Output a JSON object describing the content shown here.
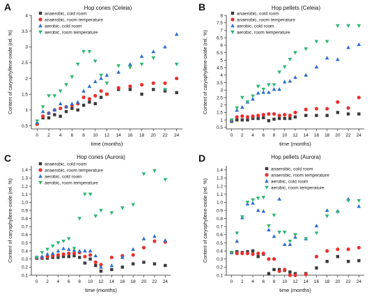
{
  "legend_labels": [
    "anaerobic, cold room",
    "anaerobic, room temperature",
    "aerobic, cold room",
    "aerobic, room temperature"
  ],
  "colors": {
    "anaerobic_cold": "#3a3a3a",
    "anaerobic_room": "#e8312f",
    "aerobic_cold": "#2f6fd1",
    "aerobic_room": "#2bb673"
  },
  "chart_data": [
    {
      "type": "scatter",
      "panel_letter": "A",
      "title": "Hop cones (Celeia)",
      "xlabel": "time (months)",
      "ylabel": "Content of caryophyllene-oxide (rel. %)",
      "xlim": [
        -1,
        25
      ],
      "ylim": [
        0.4,
        4.0
      ],
      "xticks": [
        "0",
        "2",
        "4",
        "6",
        "8",
        "10",
        "12",
        "14",
        "16",
        "18",
        "20",
        "22",
        "24"
      ],
      "yticks": [
        "0.5",
        "1",
        "1.5",
        "2",
        "2.5",
        "3",
        "3.5",
        "4"
      ],
      "legend_position": "top-left",
      "series": [
        {
          "name": "anaerobic, cold room",
          "marker": "square",
          "x": [
            0,
            1,
            2,
            3,
            4,
            5,
            6,
            7,
            8,
            9,
            10,
            11,
            12,
            14,
            16,
            18,
            20,
            22,
            24
          ],
          "y": [
            0.55,
            0.75,
            0.75,
            0.85,
            0.8,
            0.95,
            1.05,
            1.0,
            1.15,
            1.25,
            1.2,
            1.4,
            1.5,
            1.65,
            1.65,
            1.5,
            1.65,
            1.6,
            1.55
          ]
        },
        {
          "name": "anaerobic, room temperature",
          "marker": "circle",
          "x": [
            0,
            1,
            2,
            3,
            4,
            5,
            6,
            7,
            8,
            9,
            10,
            11,
            12,
            14,
            16,
            18,
            20,
            22,
            24
          ],
          "y": [
            0.55,
            0.8,
            0.9,
            1.0,
            1.05,
            1.1,
            1.15,
            1.2,
            1.4,
            1.35,
            1.45,
            1.6,
            1.5,
            1.7,
            1.75,
            1.8,
            1.85,
            1.85,
            2.0
          ]
        },
        {
          "name": "aerobic, cold room",
          "marker": "triangle-up",
          "x": [
            0,
            1,
            2,
            3,
            4,
            5,
            6,
            7,
            8,
            9,
            10,
            11,
            12,
            14,
            16,
            18,
            20,
            22,
            24
          ],
          "y": [
            0.6,
            0.95,
            0.9,
            1.0,
            1.2,
            1.1,
            1.2,
            1.25,
            1.6,
            1.75,
            1.9,
            2.0,
            2.1,
            2.2,
            2.45,
            2.7,
            2.85,
            3.0,
            3.4
          ]
        },
        {
          "name": "aerobic, room temperature",
          "marker": "triangle-down",
          "x": [
            0,
            1,
            2,
            3,
            4,
            5,
            6,
            7,
            8,
            9,
            10,
            11,
            12,
            14,
            16,
            18,
            20,
            22,
            24
          ],
          "y": [
            0.65,
            1.1,
            1.45,
            1.45,
            1.6,
            1.8,
            2.05,
            2.45,
            2.85,
            2.85,
            2.55,
            2.1,
            1.85,
            2.4,
            2.35,
            2.45,
            2.65,
            1.65,
            2.45
          ]
        }
      ]
    },
    {
      "type": "scatter",
      "panel_letter": "B",
      "title": "Hop pellets (Celeia)",
      "xlabel": "time (months)",
      "ylabel": "Content of caryophyllene-oxide (rel. %)",
      "xlim": [
        -1,
        25
      ],
      "ylim": [
        0.4,
        8.0
      ],
      "xticks": [
        "0",
        "2",
        "4",
        "6",
        "8",
        "10",
        "12",
        "14",
        "16",
        "18",
        "20",
        "22",
        "24"
      ],
      "yticks": [
        "0.5",
        "1",
        "1.5",
        "2",
        "2.5",
        "3",
        "3.5",
        "4",
        "4.5",
        "5",
        "5.5",
        "6",
        "6.5",
        "7",
        "7.5",
        "8"
      ],
      "legend_position": "top-left",
      "series": [
        {
          "name": "anaerobic, cold room",
          "marker": "square",
          "x": [
            0,
            1,
            2,
            3,
            4,
            5,
            6,
            7,
            8,
            9,
            10,
            11,
            12,
            14,
            16,
            18,
            20,
            22,
            24
          ],
          "y": [
            0.9,
            1.0,
            1.0,
            1.0,
            1.1,
            1.1,
            1.15,
            0.95,
            1.05,
            1.1,
            1.1,
            1.1,
            1.2,
            1.3,
            1.3,
            1.3,
            1.5,
            1.4,
            1.4
          ]
        },
        {
          "name": "anaerobic, room temperature",
          "marker": "circle",
          "x": [
            0,
            1,
            2,
            3,
            4,
            5,
            6,
            7,
            8,
            9,
            10,
            11,
            12,
            14,
            16,
            18,
            20,
            22,
            24
          ],
          "y": [
            0.95,
            1.2,
            1.25,
            1.2,
            1.25,
            1.3,
            1.35,
            1.4,
            1.4,
            1.3,
            1.35,
            1.3,
            1.5,
            1.7,
            1.75,
            1.75,
            2.2,
            1.8,
            2.5
          ]
        },
        {
          "name": "aerobic, cold room",
          "marker": "triangle-up",
          "x": [
            0,
            1,
            2,
            3,
            4,
            5,
            6,
            7,
            8,
            9,
            10,
            11,
            12,
            14,
            16,
            18,
            20,
            22,
            24
          ],
          "y": [
            0.95,
            1.65,
            1.85,
            2.2,
            2.4,
            2.8,
            2.85,
            2.85,
            3.05,
            3.05,
            3.55,
            3.6,
            3.85,
            4.0,
            4.55,
            5.15,
            5.05,
            5.85,
            6.05
          ]
        },
        {
          "name": "aerobic, room temperature",
          "marker": "triangle-down",
          "x": [
            0,
            1,
            2,
            3,
            4,
            5,
            6,
            7,
            8,
            9,
            10,
            11,
            12,
            14,
            16,
            18,
            20,
            22,
            24
          ],
          "y": [
            1.0,
            1.8,
            2.5,
            2.2,
            2.6,
            3.25,
            3.05,
            3.35,
            3.35,
            4.2,
            4.55,
            5.05,
            5.5,
            5.75,
            6.25,
            6.25,
            7.3,
            7.3,
            7.3
          ]
        }
      ]
    },
    {
      "type": "scatter",
      "panel_letter": "C",
      "title": "Hop cones (Aurora)",
      "xlabel": "time (months)",
      "ylabel": "Content of caryophyllene-oxide (rel. %)",
      "xlim": [
        -1,
        25
      ],
      "ylim": [
        0.1,
        1.45
      ],
      "xticks": [
        "0",
        "2",
        "4",
        "6",
        "8",
        "10",
        "12",
        "14",
        "16",
        "18",
        "20",
        "22",
        "24"
      ],
      "yticks": [
        "0.1",
        "0.2",
        "0.3",
        "0.4",
        "0.5",
        "0.6",
        "0.7",
        "0.8",
        "0.9",
        "1.0",
        "1.1",
        "1.2",
        "1.3",
        "1.4"
      ],
      "legend_position": "top-left",
      "series": [
        {
          "name": "anaerobic, cold room",
          "marker": "square",
          "x": [
            0,
            1,
            2,
            3,
            4,
            5,
            6,
            7,
            8,
            9,
            10,
            11,
            12,
            14,
            16,
            18,
            20,
            22,
            24
          ],
          "y": [
            0.31,
            0.31,
            0.31,
            0.32,
            0.32,
            0.33,
            0.33,
            0.34,
            0.32,
            0.25,
            0.3,
            0.22,
            0.15,
            0.17,
            0.2,
            0.24,
            0.26,
            0.24,
            0.22
          ]
        },
        {
          "name": "anaerobic, room temperature",
          "marker": "circle",
          "x": [
            0,
            1,
            2,
            3,
            4,
            5,
            6,
            7,
            8,
            9,
            10,
            11,
            12,
            14,
            16,
            18,
            20,
            22,
            24
          ],
          "y": [
            0.31,
            0.32,
            0.33,
            0.34,
            0.35,
            0.36,
            0.37,
            0.37,
            0.38,
            0.33,
            0.35,
            0.26,
            0.23,
            0.32,
            0.34,
            0.35,
            0.44,
            0.52,
            0.51
          ]
        },
        {
          "name": "aerobic, cold room",
          "marker": "triangle-up",
          "x": [
            0,
            1,
            2,
            3,
            4,
            5,
            6,
            7,
            8,
            9,
            10,
            11,
            12,
            14,
            16,
            18,
            20,
            22,
            24
          ],
          "y": [
            0.32,
            0.33,
            0.36,
            0.37,
            0.4,
            0.43,
            0.42,
            0.41,
            0.4,
            0.4,
            0.4,
            0.34,
            0.2,
            0.22,
            0.32,
            0.42,
            0.55,
            0.58,
            0.53
          ]
        },
        {
          "name": "aerobic, room temperature",
          "marker": "triangle-down",
          "x": [
            0,
            1,
            2,
            3,
            4,
            5,
            6,
            7,
            8,
            9,
            10,
            11,
            12,
            14,
            16,
            18,
            20,
            22,
            24
          ],
          "y": [
            0.32,
            0.38,
            0.42,
            0.46,
            0.5,
            0.52,
            0.55,
            0.43,
            0.8,
            1.1,
            1.1,
            0.83,
            0.9,
            0.87,
            0.93,
            0.97,
            1.35,
            1.39,
            1.28
          ]
        }
      ]
    },
    {
      "type": "scatter",
      "panel_letter": "D",
      "title": "Hop pellets (Aurora)",
      "xlabel": "time (months)",
      "ylabel": "Content of caryophyllene-oxide (rel. %)",
      "xlim": [
        -1,
        25
      ],
      "ylim": [
        0.1,
        1.45
      ],
      "xticks": [
        "0",
        "2",
        "4",
        "6",
        "8",
        "10",
        "12",
        "14",
        "16",
        "18",
        "20",
        "22",
        "24"
      ],
      "yticks": [
        "0.1",
        "0.2",
        "0.3",
        "0.4",
        "0.5",
        "0.6",
        "0.7",
        "0.8",
        "0.9",
        "1.0",
        "1.1",
        "1.2",
        "1.3",
        "1.4"
      ],
      "legend_position": "top-right",
      "series": [
        {
          "name": "anaerobic, cold room",
          "marker": "square",
          "x": [
            0,
            1,
            2,
            3,
            4,
            5,
            6,
            7,
            8,
            9,
            10,
            11,
            12,
            14,
            16,
            18,
            20,
            22,
            24
          ],
          "y": [
            0.38,
            0.39,
            0.38,
            0.39,
            0.4,
            0.33,
            0.36,
            0.12,
            0.17,
            0.17,
            0.16,
            0.14,
            0.12,
            0.12,
            0.19,
            0.27,
            0.33,
            0.27,
            0.28
          ]
        },
        {
          "name": "anaerobic, room temperature",
          "marker": "circle",
          "x": [
            0,
            1,
            2,
            3,
            4,
            5,
            6,
            7,
            8,
            9,
            10,
            11,
            12,
            14,
            16,
            18,
            20,
            22,
            24
          ],
          "y": [
            0.38,
            0.37,
            0.37,
            0.37,
            0.36,
            0.37,
            0.37,
            0.3,
            0.3,
            0.15,
            0.17,
            0.1,
            0.1,
            0.11,
            0.33,
            0.4,
            0.42,
            0.42,
            0.44
          ]
        },
        {
          "name": "aerobic, cold room",
          "marker": "triangle-up",
          "x": [
            0,
            1,
            2,
            3,
            4,
            5,
            6,
            7,
            8,
            9,
            10,
            11,
            12,
            14,
            16,
            18,
            20,
            22,
            24
          ],
          "y": [
            0.38,
            0.52,
            0.81,
            0.98,
            0.99,
            0.9,
            0.89,
            0.66,
            0.58,
            1.04,
            0.48,
            0.48,
            0.57,
            0.55,
            0.71,
            0.9,
            0.89,
            1.04,
            0.95
          ]
        },
        {
          "name": "aerobic, room temperature",
          "marker": "triangle-down",
          "x": [
            0,
            1,
            2,
            3,
            4,
            5,
            6,
            7,
            8,
            9,
            10,
            11,
            12,
            14,
            16,
            18,
            20,
            22,
            24
          ],
          "y": [
            0.38,
            0.62,
            0.82,
            1.0,
            1.03,
            1.05,
            1.06,
            0.71,
            0.84,
            0.63,
            0.63,
            0.52,
            0.6,
            0.55,
            0.62,
            0.83,
            0.88,
            1.02,
            1.02
          ]
        }
      ]
    }
  ]
}
